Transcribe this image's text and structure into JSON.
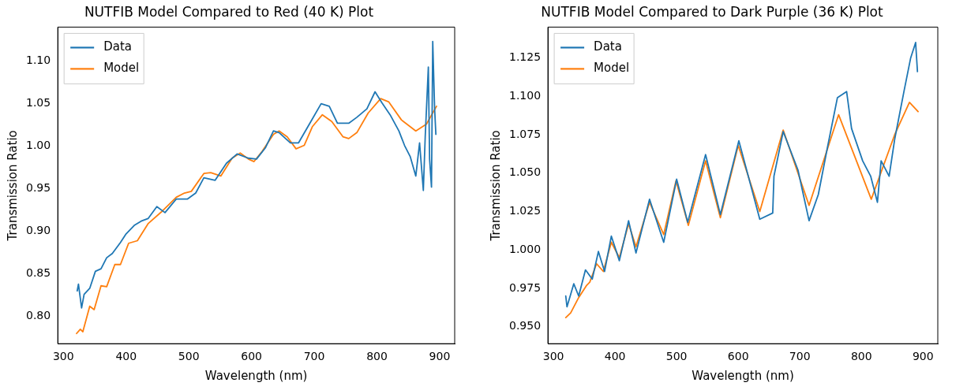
{
  "chart_data": [
    {
      "type": "line",
      "title": "NUTFIB Model Compared to Red (40 K) Plot",
      "xlabel": "Wavelength (nm)",
      "ylabel": "Transmission Ratio",
      "xlim": [
        291,
        924
      ],
      "ylim": [
        0.768,
        1.14
      ],
      "xticks": [
        300,
        400,
        500,
        600,
        700,
        800,
        900
      ],
      "yticks": [
        {
          "value": 0.8,
          "label": "0.80"
        },
        {
          "value": 0.85,
          "label": "0.85"
        },
        {
          "value": 0.9,
          "label": "0.90"
        },
        {
          "value": 0.95,
          "label": "0.95"
        },
        {
          "value": 1.0,
          "label": "1.00"
        },
        {
          "value": 1.05,
          "label": "1.05"
        },
        {
          "value": 1.1,
          "label": "1.10"
        }
      ],
      "grid": false,
      "legend": "top left",
      "line_style": "solid",
      "marker": "none",
      "series": [
        {
          "name": "Data",
          "color": "#1f77b4",
          "x": [
            322,
            324,
            329,
            333,
            342,
            351,
            360,
            369,
            378,
            391,
            400,
            413,
            424,
            435,
            449,
            462,
            480,
            498,
            511,
            524,
            542,
            560,
            577,
            595,
            608,
            622,
            635,
            644,
            662,
            675,
            693,
            711,
            724,
            737,
            755,
            768,
            784,
            797,
            808,
            821,
            835,
            844,
            853,
            862,
            868,
            874,
            877,
            882,
            884,
            887,
            889,
            892,
            894
          ],
          "values": [
            0.83,
            0.838,
            0.81,
            0.826,
            0.833,
            0.853,
            0.856,
            0.869,
            0.874,
            0.887,
            0.897,
            0.907,
            0.912,
            0.915,
            0.929,
            0.922,
            0.938,
            0.938,
            0.945,
            0.963,
            0.96,
            0.98,
            0.991,
            0.986,
            0.985,
            0.998,
            1.018,
            1.016,
            1.004,
            1.004,
            1.027,
            1.05,
            1.047,
            1.027,
            1.027,
            1.034,
            1.044,
            1.064,
            1.051,
            1.037,
            1.018,
            1.001,
            0.988,
            0.965,
            1.004,
            0.948,
            1.011,
            1.093,
            0.985,
            0.952,
            1.123,
            1.044,
            1.014
          ]
        },
        {
          "name": "Model",
          "color": "#ff7f0e",
          "x": [
            321,
            327,
            331,
            342,
            349,
            360,
            369,
            382,
            391,
            404,
            418,
            435,
            458,
            480,
            493,
            504,
            524,
            535,
            551,
            569,
            582,
            595,
            604,
            617,
            635,
            644,
            657,
            671,
            684,
            697,
            713,
            728,
            746,
            755,
            768,
            786,
            806,
            819,
            839,
            862,
            879,
            895
          ],
          "values": [
            0.78,
            0.785,
            0.782,
            0.812,
            0.808,
            0.836,
            0.835,
            0.861,
            0.861,
            0.886,
            0.889,
            0.909,
            0.924,
            0.94,
            0.945,
            0.947,
            0.968,
            0.969,
            0.965,
            0.986,
            0.992,
            0.985,
            0.982,
            0.994,
            1.014,
            1.018,
            1.011,
            0.997,
            1.001,
            1.023,
            1.037,
            1.029,
            1.011,
            1.009,
            1.016,
            1.039,
            1.056,
            1.052,
            1.031,
            1.018,
            1.026,
            1.047
          ]
        }
      ]
    },
    {
      "type": "line",
      "title": "NUTFIB Model Compared to Dark Purple (36 K) Plot",
      "xlabel": "Wavelength (nm)",
      "ylabel": "Transmission Ratio",
      "xlim": [
        291,
        924
      ],
      "ylim": [
        0.939,
        1.145
      ],
      "xticks": [
        300,
        400,
        500,
        600,
        700,
        800,
        900
      ],
      "yticks": [
        {
          "value": 0.95,
          "label": "0.950"
        },
        {
          "value": 0.975,
          "label": "0.975"
        },
        {
          "value": 1.0,
          "label": "1.000"
        },
        {
          "value": 1.025,
          "label": "1.025"
        },
        {
          "value": 1.05,
          "label": "1.050"
        },
        {
          "value": 1.075,
          "label": "1.075"
        },
        {
          "value": 1.1,
          "label": "1.100"
        },
        {
          "value": 1.125,
          "label": "1.125"
        }
      ],
      "grid": false,
      "legend": "top left",
      "line_style": "solid",
      "marker": "none",
      "series": [
        {
          "name": "Data",
          "color": "#1f77b4",
          "x": [
            320,
            322,
            333,
            341,
            352,
            363,
            373,
            383,
            394,
            407,
            422,
            434,
            456,
            479,
            500,
            518,
            547,
            571,
            601,
            635,
            656,
            658,
            673,
            697,
            715,
            730,
            745,
            761,
            776,
            784,
            802,
            815,
            826,
            832,
            845,
            854,
            869,
            880,
            888,
            891
          ],
          "values": [
            0.97,
            0.963,
            0.978,
            0.97,
            0.987,
            0.981,
            0.999,
            0.986,
            1.009,
            0.993,
            1.019,
            0.998,
            1.033,
            1.005,
            1.046,
            1.018,
            1.062,
            1.023,
            1.071,
            1.02,
            1.024,
            1.048,
            1.077,
            1.052,
            1.019,
            1.036,
            1.067,
            1.099,
            1.103,
            1.079,
            1.058,
            1.048,
            1.031,
            1.058,
            1.048,
            1.072,
            1.103,
            1.125,
            1.135,
            1.116
          ]
        },
        {
          "name": "Model",
          "color": "#ff7f0e",
          "x": [
            320,
            328,
            341,
            354,
            359,
            370,
            381,
            394,
            407,
            422,
            434,
            456,
            479,
            499,
            519,
            547,
            571,
            600,
            635,
            673,
            715,
            763,
            816,
            854,
            878,
            892
          ],
          "values": [
            0.956,
            0.959,
            0.969,
            0.977,
            0.979,
            0.991,
            0.986,
            1.005,
            0.995,
            1.017,
            1.002,
            1.031,
            1.01,
            1.045,
            1.016,
            1.058,
            1.021,
            1.068,
            1.025,
            1.078,
            1.029,
            1.088,
            1.033,
            1.075,
            1.096,
            1.09
          ]
        }
      ]
    }
  ]
}
